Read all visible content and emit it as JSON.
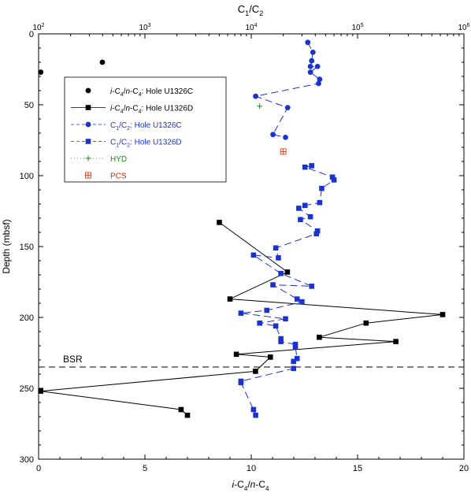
{
  "chart_data": {
    "type": "scatter",
    "top_axis": {
      "label_main": "C",
      "label_sub1": "1",
      "label_sep": "/C",
      "label_sub2": "2",
      "scale": "log",
      "range": [
        100,
        1000000
      ],
      "ticks": [
        {
          "base": "10",
          "exp": "2",
          "value": 100
        },
        {
          "base": "10",
          "exp": "3",
          "value": 1000
        },
        {
          "base": "10",
          "exp": "4",
          "value": 10000
        },
        {
          "base": "10",
          "exp": "5",
          "value": 100000
        },
        {
          "base": "10",
          "exp": "6",
          "value": 1000000
        }
      ]
    },
    "bottom_axis": {
      "label_pre": "i",
      "label_a": "-C",
      "label_sub_a": "4",
      "label_mid": "/",
      "label_n": "n",
      "label_b": "-C",
      "label_sub_b": "4",
      "range": [
        0,
        20
      ],
      "ticks": [
        {
          "label": "0",
          "value": 0
        },
        {
          "label": "5",
          "value": 5
        },
        {
          "label": "10",
          "value": 10
        },
        {
          "label": "15",
          "value": 15
        },
        {
          "label": "20",
          "value": 20
        }
      ]
    },
    "y_axis": {
      "label": "Depth (mbsf)",
      "range": [
        0,
        300
      ],
      "inverted": true,
      "ticks": [
        {
          "label": "0",
          "value": 0
        },
        {
          "label": "50",
          "value": 50
        },
        {
          "label": "100",
          "value": 100
        },
        {
          "label": "150",
          "value": 150
        },
        {
          "label": "200",
          "value": 200
        },
        {
          "label": "250",
          "value": 250
        },
        {
          "label": "300",
          "value": 300
        }
      ]
    },
    "bsr": {
      "label": "BSR",
      "depth": 235
    },
    "legend": {
      "position": "top-left",
      "items": [
        {
          "key": "ic4_u1326c",
          "pre": "i",
          "a": "-C",
          "sa": "4",
          "mid": "/",
          "n": "n",
          "b": "-C",
          "sb": "4",
          "tail": ": Hole U1326C",
          "color": "#000000"
        },
        {
          "key": "ic4_u1326d",
          "pre": "i",
          "a": "-C",
          "sa": "4",
          "mid": "/",
          "n": "n",
          "b": "-C",
          "sb": "4",
          "tail": ": Hole U1326D",
          "color": "#000000"
        },
        {
          "key": "c1c2_u1326c",
          "a": "C",
          "sa": "1",
          "mid": "/C",
          "sb": "2",
          "tail": ": Hole U1326C",
          "color": "#1a33cc"
        },
        {
          "key": "c1c2_u1326d",
          "a": "C",
          "sa": "1",
          "mid": "/C",
          "sb": "2",
          "tail": ": Hole U1326D",
          "color": "#1a33cc"
        },
        {
          "key": "hyd",
          "tail": "HYD",
          "color": "#1a8a1a"
        },
        {
          "key": "pcs",
          "tail": "PCS",
          "color": "#dd2200"
        }
      ]
    },
    "series": [
      {
        "key": "ic4_u1326c",
        "axis": "bottom",
        "marker": "circle",
        "color": "#000000",
        "line": false,
        "points": [
          [
            0.1,
            27
          ],
          [
            3.0,
            20
          ]
        ]
      },
      {
        "key": "ic4_u1326d",
        "axis": "bottom",
        "marker": "square",
        "color": "#000000",
        "line": "solid",
        "points": [
          [
            8.5,
            133
          ],
          [
            11.7,
            168
          ],
          [
            9.0,
            187
          ],
          [
            19.0,
            198
          ],
          [
            15.4,
            204
          ],
          [
            13.2,
            214
          ],
          [
            16.8,
            217
          ],
          [
            9.3,
            226
          ],
          [
            10.9,
            228
          ],
          [
            10.2,
            238
          ],
          [
            0.1,
            252
          ],
          [
            6.7,
            265
          ],
          [
            7.0,
            269
          ]
        ]
      },
      {
        "key": "c1c2_u1326c",
        "axis": "top",
        "marker": "circle",
        "color": "#1a33cc",
        "line": "dashed",
        "points": [
          [
            34000,
            6
          ],
          [
            38000,
            13
          ],
          [
            37000,
            19
          ],
          [
            36000,
            23
          ],
          [
            42000,
            23
          ],
          [
            36000,
            27
          ],
          [
            44000,
            32
          ],
          [
            43000,
            35
          ],
          [
            11000,
            44
          ],
          [
            22000,
            52
          ],
          [
            16000,
            71
          ],
          [
            21000,
            73
          ]
        ]
      },
      {
        "key": "c1c2_u1326d",
        "axis": "top",
        "marker": "square",
        "color": "#1a33cc",
        "line": "dashed",
        "points": [
          [
            37000,
            93
          ],
          [
            32000,
            94
          ],
          [
            58000,
            101
          ],
          [
            60000,
            103
          ],
          [
            46000,
            109
          ],
          [
            44000,
            119
          ],
          [
            32000,
            121
          ],
          [
            28000,
            123
          ],
          [
            36000,
            129
          ],
          [
            29000,
            131
          ],
          [
            42000,
            139
          ],
          [
            41000,
            141
          ],
          [
            17000,
            151
          ],
          [
            18000,
            158
          ],
          [
            10500,
            156
          ],
          [
            19000,
            169
          ],
          [
            37000,
            178
          ],
          [
            16000,
            177
          ],
          [
            27000,
            187
          ],
          [
            30000,
            189
          ],
          [
            14000,
            195
          ],
          [
            8000,
            197
          ],
          [
            21000,
            201
          ],
          [
            12000,
            204
          ],
          [
            17000,
            206
          ],
          [
            19000,
            215
          ],
          [
            19000,
            217
          ],
          [
            26000,
            219
          ],
          [
            26000,
            221
          ],
          [
            27000,
            229
          ],
          [
            25000,
            231
          ],
          [
            25000,
            236
          ],
          [
            8000,
            245
          ],
          [
            8000,
            246
          ],
          [
            10500,
            265
          ],
          [
            11000,
            269
          ]
        ]
      },
      {
        "key": "hyd",
        "axis": "top",
        "marker": "plus",
        "color": "#1a8a1a",
        "line": false,
        "points": [
          [
            12000,
            51
          ]
        ]
      },
      {
        "key": "pcs",
        "axis": "top",
        "marker": "boxplus",
        "color": "#dd2200",
        "line": false,
        "points": [
          [
            20000,
            83
          ]
        ]
      }
    ]
  }
}
